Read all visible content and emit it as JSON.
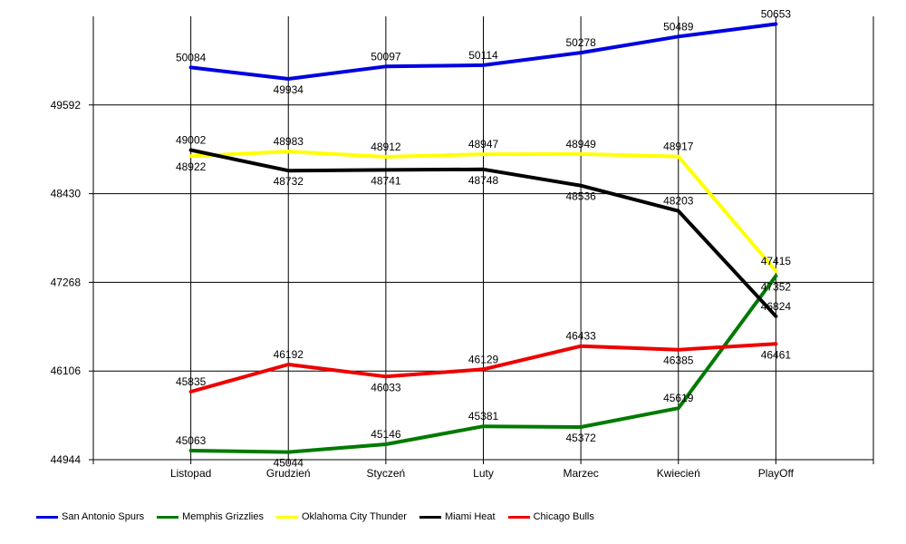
{
  "chart_data": {
    "type": "line",
    "categories": [
      "Listopad",
      "Grudzień",
      "Styczeń",
      "Luty",
      "Marzec",
      "Kwiecień",
      "PlayOff"
    ],
    "yticks": [
      44944,
      46106,
      47268,
      48430,
      49592
    ],
    "ylim": [
      44944,
      50754
    ],
    "grid": true,
    "legend_position": "bottom-left",
    "series": [
      {
        "name": "San Antonio Spurs",
        "color": "#0000e0",
        "values": [
          50084,
          49934,
          50097,
          50114,
          50278,
          50489,
          50653
        ]
      },
      {
        "name": "Memphis Grizzlies",
        "color": "#007a00",
        "values": [
          45063,
          45044,
          45146,
          45381,
          45372,
          45619,
          47352
        ]
      },
      {
        "name": "Oklahoma City Thunder",
        "color": "#ffff00",
        "values": [
          48922,
          48983,
          48912,
          48947,
          48949,
          48917,
          47415
        ]
      },
      {
        "name": "Miami Heat",
        "color": "#000000",
        "values": [
          49002,
          48732,
          48741,
          48748,
          48536,
          48203,
          46824
        ]
      },
      {
        "name": "Chicago Bulls",
        "color": "#ee0000",
        "values": [
          45835,
          46192,
          46033,
          46129,
          46433,
          46385,
          46461
        ]
      }
    ]
  }
}
